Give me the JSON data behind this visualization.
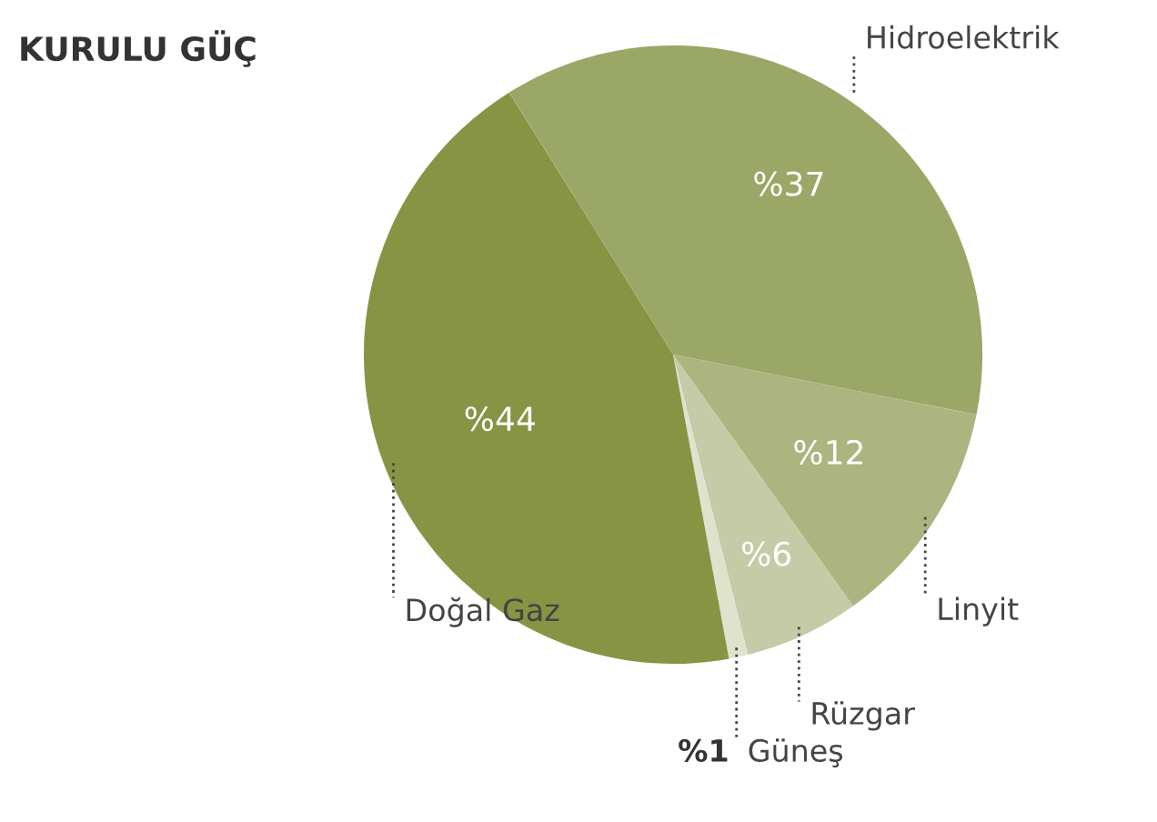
{
  "chart_data": {
    "type": "pie",
    "title": "KURULU GÜÇ",
    "categories": [
      "Hidroelektrik",
      "Linyit",
      "Rüzgar",
      "Güneş",
      "Doğal Gaz"
    ],
    "values": [
      37,
      12,
      6,
      1,
      44
    ],
    "colors": [
      "#9ba766",
      "#acb47f",
      "#c5cba6",
      "#dfe2cc",
      "#879444"
    ],
    "value_labels": [
      "%37",
      "%12",
      "%6",
      "%1",
      "%44"
    ],
    "legend": false
  }
}
